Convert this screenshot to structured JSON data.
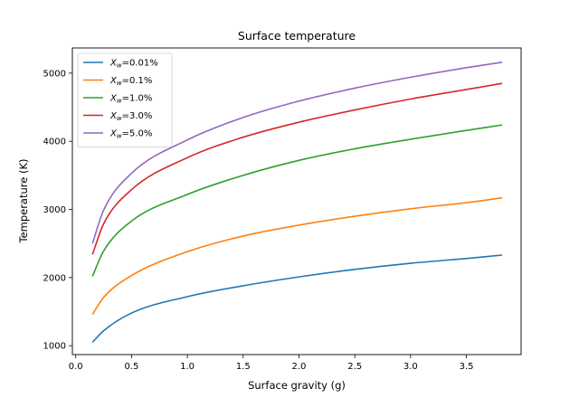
{
  "chart_data": {
    "type": "line",
    "title": "Surface temperature",
    "xlabel": "Surface gravity (g)",
    "ylabel": "Temperature (K)",
    "xlim": [
      -0.03,
      3.99
    ],
    "ylim": [
      870,
      5370
    ],
    "xticks": [
      0.0,
      0.5,
      1.0,
      1.5,
      2.0,
      2.5,
      3.0,
      3.5
    ],
    "xtick_labels": [
      "0.0",
      "0.5",
      "1.0",
      "1.5",
      "2.0",
      "2.5",
      "3.0",
      "3.5"
    ],
    "yticks": [
      1000,
      2000,
      3000,
      4000,
      5000
    ],
    "ytick_labels": [
      "1000",
      "2000",
      "3000",
      "4000",
      "5000"
    ],
    "grid": false,
    "legend_position": "top-left",
    "x": [
      0.15,
      0.25,
      0.5,
      1.0,
      1.5,
      2.0,
      2.5,
      3.0,
      3.5,
      3.82
    ],
    "series": [
      {
        "label": "X",
        "sub": "w",
        "suffix": "=0.01%",
        "color": "#1f77b4",
        "values": [
          1050,
          1220,
          1480,
          1720,
          1880,
          2010,
          2120,
          2210,
          2280,
          2330
        ]
      },
      {
        "label": "X",
        "sub": "w",
        "suffix": "=0.1%",
        "color": "#ff7f0e",
        "values": [
          1460,
          1710,
          2030,
          2380,
          2610,
          2770,
          2900,
          3010,
          3100,
          3170
        ]
      },
      {
        "label": "X",
        "sub": "w",
        "suffix": "=1.0%",
        "color": "#2ca02c",
        "values": [
          2020,
          2390,
          2830,
          3220,
          3500,
          3720,
          3890,
          4030,
          4160,
          4240
        ]
      },
      {
        "label": "X",
        "sub": "w",
        "suffix": "=3.0%",
        "color": "#d62728",
        "values": [
          2340,
          2790,
          3290,
          3760,
          4060,
          4280,
          4460,
          4620,
          4760,
          4850
        ]
      },
      {
        "label": "X",
        "sub": "w",
        "suffix": "=5.0%",
        "color": "#9467bd",
        "values": [
          2500,
          2990,
          3530,
          4020,
          4350,
          4590,
          4780,
          4940,
          5080,
          5160
        ]
      }
    ]
  }
}
